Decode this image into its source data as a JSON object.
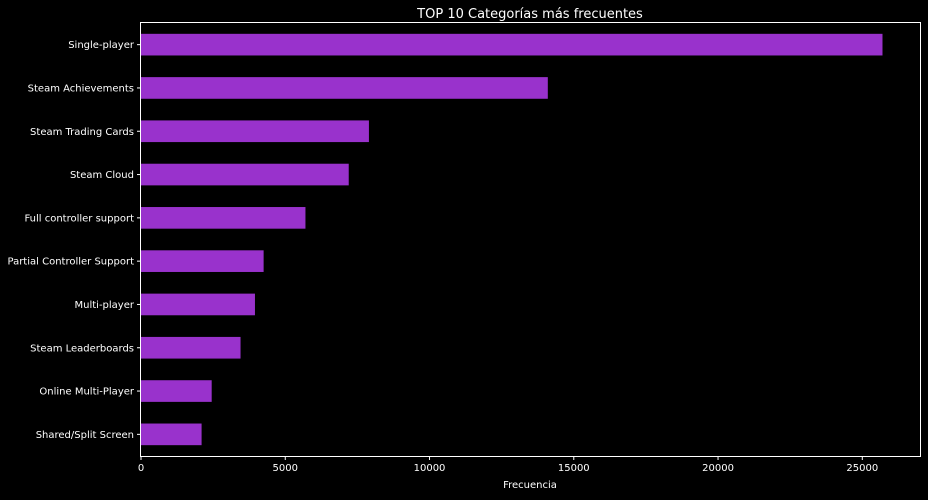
{
  "chart_data": {
    "type": "bar",
    "orientation": "horizontal",
    "title": "TOP 10 Categorías más frecuentes",
    "xlabel": "Frecuencia",
    "ylabel": "",
    "categories": [
      "Single-player",
      "Steam Achievements",
      "Steam Trading Cards",
      "Steam Cloud",
      "Full controller support",
      "Partial Controller Support",
      "Multi-player",
      "Steam Leaderboards",
      "Online Multi-Player",
      "Shared/Split Screen"
    ],
    "values": [
      25700,
      14100,
      7900,
      7200,
      5700,
      4250,
      3950,
      3450,
      2450,
      2100
    ],
    "xlim": [
      0,
      27000
    ],
    "xticks": [
      0,
      5000,
      10000,
      15000,
      20000,
      25000
    ],
    "xtick_labels": [
      "0",
      "5000",
      "10000",
      "15000",
      "20000",
      "25000"
    ],
    "grid": false,
    "legend": "none",
    "colors": {
      "background": "#000000",
      "bar": "#9932cc",
      "text": "#ffffff",
      "axes": "#ffffff"
    }
  }
}
